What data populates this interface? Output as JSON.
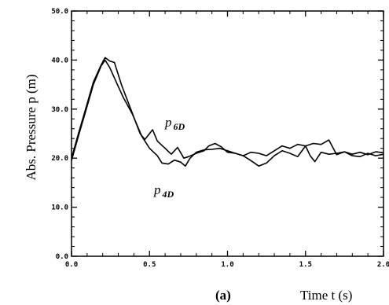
{
  "chart_data": {
    "type": "line",
    "panel_label": "(a)",
    "ylabel": "Abs. Pressure p (m)",
    "xlabel": "Time t (s)",
    "xlim": [
      0,
      2
    ],
    "ylim": [
      0,
      50
    ],
    "xticks": [
      "0.0",
      "0.5",
      "1.0",
      "1.5",
      "2.0"
    ],
    "yticks": [
      "0.0",
      "10.0",
      "20.0",
      "30.0",
      "40.0",
      "50.0"
    ],
    "series": [
      {
        "name": "p6D",
        "label_main": "p",
        "label_sub": "6D",
        "x": [
          0.0,
          0.04,
          0.09,
          0.14,
          0.19,
          0.215,
          0.245,
          0.275,
          0.32,
          0.38,
          0.44,
          0.47,
          0.52,
          0.55,
          0.6,
          0.64,
          0.68,
          0.72,
          0.75,
          0.8,
          0.85,
          0.88,
          0.92,
          0.96,
          1.0,
          1.05,
          1.1,
          1.15,
          1.2,
          1.25,
          1.3,
          1.35,
          1.4,
          1.45,
          1.5,
          1.55,
          1.6,
          1.65,
          1.7,
          1.75,
          1.8,
          1.85,
          1.9,
          1.95,
          2.0
        ],
        "y": [
          20.0,
          24.5,
          30.0,
          35.5,
          39.0,
          40.5,
          39.8,
          39.5,
          35.0,
          30.0,
          25.0,
          23.8,
          25.8,
          23.5,
          22.0,
          20.8,
          22.2,
          20.0,
          20.3,
          21.0,
          21.5,
          22.5,
          23.0,
          22.3,
          21.2,
          21.0,
          20.5,
          21.2,
          21.0,
          20.5,
          21.5,
          22.5,
          22.0,
          22.8,
          22.5,
          23.0,
          22.8,
          23.7,
          20.7,
          21.3,
          20.8,
          21.2,
          20.7,
          21.3,
          21.1
        ]
      },
      {
        "name": "p4D",
        "label_main": "p",
        "label_sub": "4D",
        "x": [
          0.0,
          0.04,
          0.09,
          0.14,
          0.19,
          0.215,
          0.245,
          0.28,
          0.33,
          0.39,
          0.45,
          0.5,
          0.55,
          0.58,
          0.62,
          0.66,
          0.7,
          0.73,
          0.76,
          0.8,
          0.85,
          0.9,
          0.95,
          1.0,
          1.05,
          1.1,
          1.15,
          1.2,
          1.25,
          1.3,
          1.35,
          1.4,
          1.45,
          1.5,
          1.53,
          1.56,
          1.6,
          1.65,
          1.7,
          1.75,
          1.8,
          1.85,
          1.9,
          1.95,
          2.0
        ],
        "y": [
          19.5,
          24.0,
          29.5,
          35.0,
          38.8,
          40.0,
          38.5,
          36.0,
          32.5,
          29.0,
          24.5,
          22.0,
          20.5,
          19.0,
          18.8,
          19.6,
          19.2,
          18.4,
          20.0,
          21.2,
          21.7,
          21.8,
          22.0,
          21.5,
          21.0,
          20.5,
          19.5,
          18.4,
          19.0,
          20.5,
          21.5,
          21.0,
          20.3,
          22.5,
          20.5,
          19.3,
          21.2,
          20.8,
          21.0,
          21.3,
          20.5,
          20.3,
          21.0,
          20.5,
          20.8
        ]
      }
    ]
  }
}
